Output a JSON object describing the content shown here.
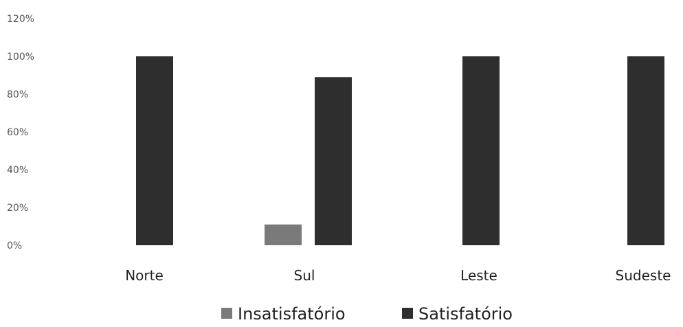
{
  "chart_data": {
    "type": "bar",
    "title": "",
    "xlabel": "",
    "ylabel": "",
    "categories": [
      "Norte",
      "Sul",
      "Leste",
      "Sudeste"
    ],
    "series": [
      {
        "name": "Insatisfatório",
        "color": "#7a7a7a",
        "values": [
          0,
          11,
          0,
          0
        ]
      },
      {
        "name": "Satisfatório",
        "color": "#2e2e2e",
        "values": [
          100,
          89,
          100,
          100
        ]
      }
    ],
    "y_ticks": [
      "0%",
      "20%",
      "40%",
      "60%",
      "80%",
      "100%",
      "120%"
    ],
    "ylim": [
      0,
      120
    ],
    "y_unit": "%",
    "grid": false,
    "legend_position": "bottom"
  }
}
